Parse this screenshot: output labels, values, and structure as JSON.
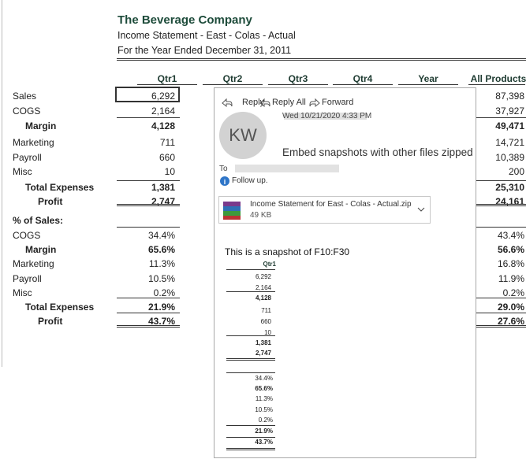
{
  "header": {
    "title": "The Beverage Company",
    "subtitle": "Income Statement - East - Colas - Actual",
    "period": "For the Year Ended December 31, 2011"
  },
  "table": {
    "columns": [
      "Qtr1",
      "Qtr2",
      "Qtr3",
      "Qtr4",
      "Year",
      "All Products"
    ],
    "rows": [
      {
        "label": "Sales",
        "qtr1": "6,292",
        "all_products": "87,398"
      },
      {
        "label": "COGS",
        "qtr1": "2,164",
        "all_products": "37,927"
      },
      {
        "label": "Margin",
        "qtr1": "4,128",
        "all_products": "49,471"
      },
      {
        "label": "Marketing",
        "qtr1": "711",
        "all_products": "14,721"
      },
      {
        "label": "Payroll",
        "qtr1": "660",
        "all_products": "10,389"
      },
      {
        "label": "Misc",
        "qtr1": "10",
        "all_products": "200"
      },
      {
        "label": "Total Expenses",
        "qtr1": "1,381",
        "all_products": "25,310"
      },
      {
        "label": "Profit",
        "qtr1": "2,747",
        "all_products": "24,161"
      }
    ],
    "percent_heading": "% of Sales:",
    "percent_rows": [
      {
        "label": "COGS",
        "qtr1": "34.4%",
        "all_products": "43.4%"
      },
      {
        "label": "Margin",
        "qtr1": "65.6%",
        "all_products": "56.6%"
      },
      {
        "label": "Marketing",
        "qtr1": "11.3%",
        "all_products": "16.8%"
      },
      {
        "label": "Payroll",
        "qtr1": "10.5%",
        "all_products": "11.9%"
      },
      {
        "label": "Misc",
        "qtr1": "0.2%",
        "all_products": "0.2%"
      },
      {
        "label": "Total Expenses",
        "qtr1": "21.9%",
        "all_products": "29.0%"
      },
      {
        "label": "Profit",
        "qtr1": "43.7%",
        "all_products": "27.6%"
      }
    ]
  },
  "email": {
    "actions": [
      "Reply",
      "Reply All",
      "Forward"
    ],
    "avatar": "KW",
    "date": "Wed 10/21/2020 4:33 PM",
    "subject": "Embed snapshots with other files zipped",
    "to_label": "To",
    "flag": "Follow up.",
    "attachment": {
      "name": "Income Statement for East - Colas - Actual.zip",
      "size": "49 KB"
    },
    "body": "This is a snapshot of F10:F30",
    "snapshot": {
      "header": "Qtr1",
      "values": [
        "6,292",
        "2,164",
        "4,128",
        "711",
        "660",
        "10",
        "1,381",
        "2,747"
      ],
      "percents": [
        "34.4%",
        "65.6%",
        "11.3%",
        "10.5%",
        "0.2%",
        "21.9%",
        "43.7%"
      ]
    }
  }
}
